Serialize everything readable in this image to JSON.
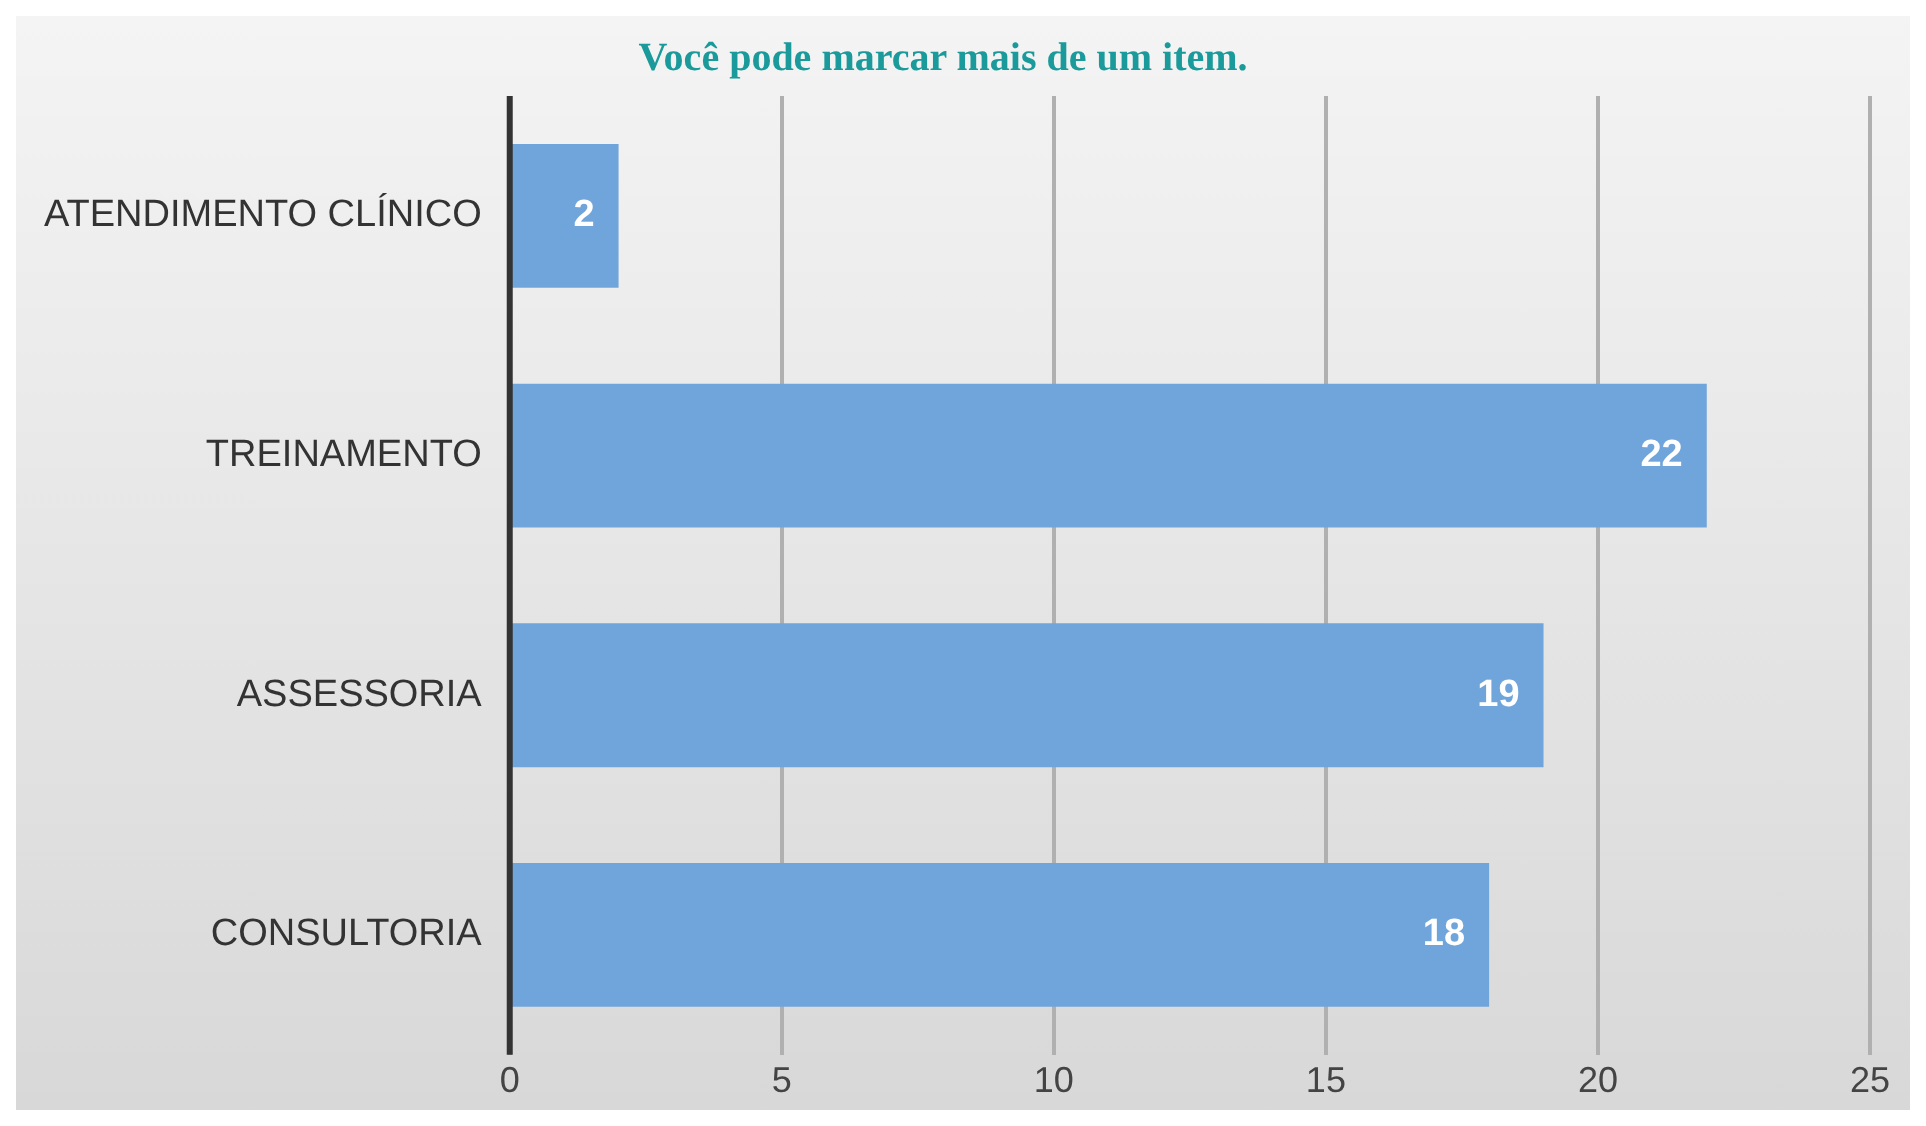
{
  "chart_data": {
    "type": "bar",
    "orientation": "horizontal",
    "title": "Você pode marcar mais de um item.",
    "categories": [
      "ATENDIMENTO CLÍNICO",
      "TREINAMENTO",
      "ASSESSORIA",
      "CONSULTORIA"
    ],
    "values": [
      2,
      22,
      19,
      18
    ],
    "color": "#6fa5da",
    "xlim": [
      0,
      25
    ],
    "xticks": [
      0,
      5,
      10,
      15,
      20,
      25
    ],
    "grid": "x",
    "data_labels": true
  }
}
